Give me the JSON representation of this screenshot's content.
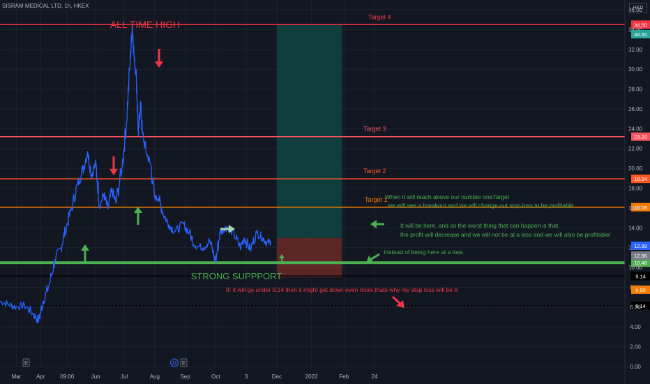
{
  "header": {
    "title": "SISRAM MEDICAL LTD, 1h, HKEX",
    "currency": "HKD"
  },
  "chart_data": {
    "type": "line",
    "ylim": [
      0,
      36
    ],
    "y_ticks": [
      "0.00",
      "2.00",
      "4.00",
      "6.00",
      "8.00",
      "10.00",
      "12.00",
      "14.00",
      "16.00",
      "18.00",
      "20.00",
      "22.00",
      "24.00",
      "26.00",
      "28.00",
      "30.00",
      "32.00",
      "34.00",
      "36.00"
    ],
    "x_ticks": [
      "Mar",
      "Apr",
      "09:00",
      "Jun",
      "Jul",
      "Aug",
      "Sep",
      "Oct",
      "3",
      "Dec",
      "2022",
      "Feb",
      "24"
    ],
    "x_tick_positions": [
      0.8,
      2.0,
      3.3,
      4.7,
      6.1,
      7.6,
      9.1,
      10.6,
      12.1,
      13.6,
      15.3,
      16.9,
      18.4
    ],
    "x_range": [
      0,
      30.7
    ],
    "series": [
      {
        "color": "#2962ff",
        "x": [
          0.0,
          0.4,
          0.8,
          1.2,
          1.6,
          1.9,
          2.1,
          2.4,
          2.7,
          3.0,
          3.2,
          3.5,
          3.8,
          4.0,
          4.3,
          4.5,
          4.7,
          4.9,
          5.1,
          5.3,
          5.5,
          5.7,
          6.0,
          6.2,
          6.4,
          6.5,
          6.6,
          6.7,
          6.8,
          6.9,
          7.0,
          7.2,
          7.4,
          7.6,
          7.8,
          8.0,
          8.3,
          8.6,
          9.0,
          9.3,
          9.6,
          10.0,
          10.3,
          10.6,
          10.8,
          11.0,
          11.2,
          11.5,
          11.8,
          12.0,
          12.3,
          12.6,
          12.9,
          13.1,
          13.3
        ],
        "values": [
          6.6,
          6.3,
          6.0,
          6.2,
          5.4,
          4.6,
          6.5,
          8.1,
          10.8,
          12.0,
          13.7,
          15.8,
          18.3,
          19.3,
          21.7,
          19.3,
          20.5,
          16.2,
          17.4,
          15.9,
          17.8,
          16.5,
          20.2,
          24.3,
          31.0,
          34.5,
          30.9,
          29.4,
          23.3,
          26.7,
          23.5,
          21.5,
          20.4,
          17.0,
          17.0,
          15.5,
          14.3,
          13.6,
          14.4,
          13.5,
          12.2,
          12.0,
          12.7,
          10.6,
          13.5,
          13.9,
          14.1,
          13.4,
          12.0,
          13.0,
          11.8,
          13.5,
          13.0,
          12.5,
          12.6
        ]
      }
    ],
    "levels": [
      {
        "label": "Target 4",
        "value": 34.5,
        "color": "#f23645",
        "price_label": "34.50"
      },
      {
        "label": "Target 3",
        "value": 23.2,
        "color": "#f7525f",
        "price_label": "23.20"
      },
      {
        "label": "Target 2",
        "value": 18.94,
        "color": "#ff5722",
        "price_label": "18.94"
      },
      {
        "label": "Target 1",
        "value": 16.08,
        "color": "#f57c00",
        "price_label": "16.08"
      },
      {
        "label": "",
        "value": 10.48,
        "color": "#4caf50",
        "price_label": "10.48"
      },
      {
        "label": "",
        "value": 9.14,
        "color": "#000000",
        "price_label": "9.14"
      },
      {
        "label": "",
        "value": 6.14,
        "color": "#000000",
        "price_label": "6.14"
      }
    ],
    "price_tags": [
      {
        "value": "34.50",
        "bg": "#26a69a"
      },
      {
        "value": "12.98",
        "bg": "#2962ff"
      },
      {
        "value": "12.96",
        "bg": "#787b86"
      },
      {
        "value": "9.00",
        "bg": "#f57c00"
      }
    ],
    "position": {
      "x_start": 13.6,
      "x_end": 16.8,
      "target": 34.5,
      "entry": 12.97,
      "stop": 9.0,
      "profit_color": "#0f3d3e",
      "loss_color": "#5c2526"
    },
    "annotations": {
      "all_time_high": "ALL TIME HIGH",
      "strong_support": "STRONG SUPPPORT",
      "stop_note": "IF it will go under 9.14 then it might get down even more,thats why my stop loss will be 9",
      "breakout_line1": "When it will reach above our  number oneTarget",
      "breakout_line2": "we will see a breakout  and we will change out stop loss to be profitable",
      "worst_line1": "It will be here, and so the worst thing that can happen is that",
      "worst_line2": "the profit will decrease and we will not be at a loss and we will also be profitable!",
      "instead": "Instead of being here at a loss"
    },
    "event_badges": [
      "E",
      "D",
      "E"
    ]
  }
}
